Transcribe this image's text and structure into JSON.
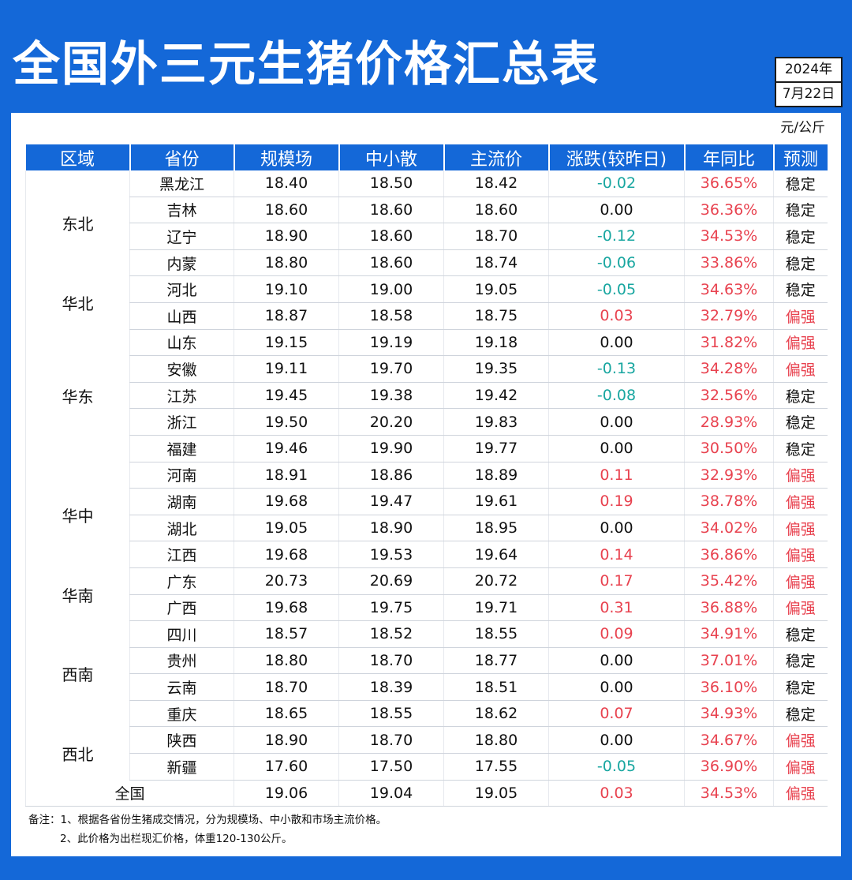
{
  "title": "全国外三元生猪价格汇总表",
  "date": {
    "year": "2024年",
    "day": "7月22日"
  },
  "unit": "元/公斤",
  "columns": [
    "区域",
    "省份",
    "规模场",
    "中小散",
    "主流价",
    "涨跌(较昨日)",
    "年同比",
    "预测"
  ],
  "regions": [
    {
      "name": "东北",
      "rows": 4
    },
    {
      "name": "华北",
      "rows": 2
    },
    {
      "name": "华东",
      "rows": 5
    },
    {
      "name": "华中",
      "rows": 4
    },
    {
      "name": "华南",
      "rows": 2
    },
    {
      "name": "西南",
      "rows": 4
    },
    {
      "name": "西北",
      "rows": 2
    }
  ],
  "rows": [
    {
      "province": "黑龙江",
      "large": "18.40",
      "small": "18.50",
      "main": "18.42",
      "change": "-0.02",
      "yoy": "36.65%",
      "forecast": "稳定"
    },
    {
      "province": "吉林",
      "large": "18.60",
      "small": "18.60",
      "main": "18.60",
      "change": "0.00",
      "yoy": "36.36%",
      "forecast": "稳定"
    },
    {
      "province": "辽宁",
      "large": "18.90",
      "small": "18.60",
      "main": "18.70",
      "change": "-0.12",
      "yoy": "34.53%",
      "forecast": "稳定"
    },
    {
      "province": "内蒙",
      "large": "18.80",
      "small": "18.60",
      "main": "18.74",
      "change": "-0.06",
      "yoy": "33.86%",
      "forecast": "稳定"
    },
    {
      "province": "河北",
      "large": "19.10",
      "small": "19.00",
      "main": "19.05",
      "change": "-0.05",
      "yoy": "34.63%",
      "forecast": "稳定"
    },
    {
      "province": "山西",
      "large": "18.87",
      "small": "18.58",
      "main": "18.75",
      "change": "0.03",
      "yoy": "32.79%",
      "forecast": "偏强"
    },
    {
      "province": "山东",
      "large": "19.15",
      "small": "19.19",
      "main": "19.18",
      "change": "0.00",
      "yoy": "31.82%",
      "forecast": "偏强"
    },
    {
      "province": "安徽",
      "large": "19.11",
      "small": "19.70",
      "main": "19.35",
      "change": "-0.13",
      "yoy": "34.28%",
      "forecast": "偏强"
    },
    {
      "province": "江苏",
      "large": "19.45",
      "small": "19.38",
      "main": "19.42",
      "change": "-0.08",
      "yoy": "32.56%",
      "forecast": "稳定"
    },
    {
      "province": "浙江",
      "large": "19.50",
      "small": "20.20",
      "main": "19.83",
      "change": "0.00",
      "yoy": "28.93%",
      "forecast": "稳定"
    },
    {
      "province": "福建",
      "large": "19.46",
      "small": "19.90",
      "main": "19.77",
      "change": "0.00",
      "yoy": "30.50%",
      "forecast": "稳定"
    },
    {
      "province": "河南",
      "large": "18.91",
      "small": "18.86",
      "main": "18.89",
      "change": "0.11",
      "yoy": "32.93%",
      "forecast": "偏强"
    },
    {
      "province": "湖南",
      "large": "19.68",
      "small": "19.47",
      "main": "19.61",
      "change": "0.19",
      "yoy": "38.78%",
      "forecast": "偏强"
    },
    {
      "province": "湖北",
      "large": "19.05",
      "small": "18.90",
      "main": "18.95",
      "change": "0.00",
      "yoy": "34.02%",
      "forecast": "偏强"
    },
    {
      "province": "江西",
      "large": "19.68",
      "small": "19.53",
      "main": "19.64",
      "change": "0.14",
      "yoy": "36.86%",
      "forecast": "偏强"
    },
    {
      "province": "广东",
      "large": "20.73",
      "small": "20.69",
      "main": "20.72",
      "change": "0.17",
      "yoy": "35.42%",
      "forecast": "偏强"
    },
    {
      "province": "广西",
      "large": "19.68",
      "small": "19.75",
      "main": "19.71",
      "change": "0.31",
      "yoy": "36.88%",
      "forecast": "偏强"
    },
    {
      "province": "四川",
      "large": "18.57",
      "small": "18.52",
      "main": "18.55",
      "change": "0.09",
      "yoy": "34.91%",
      "forecast": "稳定"
    },
    {
      "province": "贵州",
      "large": "18.80",
      "small": "18.70",
      "main": "18.77",
      "change": "0.00",
      "yoy": "37.01%",
      "forecast": "稳定"
    },
    {
      "province": "云南",
      "large": "18.70",
      "small": "18.39",
      "main": "18.51",
      "change": "0.00",
      "yoy": "36.10%",
      "forecast": "稳定"
    },
    {
      "province": "重庆",
      "large": "18.65",
      "small": "18.55",
      "main": "18.62",
      "change": "0.07",
      "yoy": "34.93%",
      "forecast": "稳定"
    },
    {
      "province": "陕西",
      "large": "18.90",
      "small": "18.70",
      "main": "18.80",
      "change": "0.00",
      "yoy": "34.67%",
      "forecast": "偏强"
    },
    {
      "province": "新疆",
      "large": "17.60",
      "small": "17.50",
      "main": "17.55",
      "change": "-0.05",
      "yoy": "36.90%",
      "forecast": "偏强"
    }
  ],
  "national": {
    "label": "全国",
    "large": "19.06",
    "small": "19.04",
    "main": "19.05",
    "change": "0.03",
    "yoy": "34.53%",
    "forecast": "偏强"
  },
  "notes": [
    "备注：1、根据各省份生猪成交情况，分为规模场、中小散和市场主流价格。",
    "2、此价格为出栏现汇价格，体重120-130公斤。"
  ],
  "colors": {
    "header_bg": "#1468d8",
    "negative": "#18a6a0",
    "positive": "#e8424f"
  }
}
